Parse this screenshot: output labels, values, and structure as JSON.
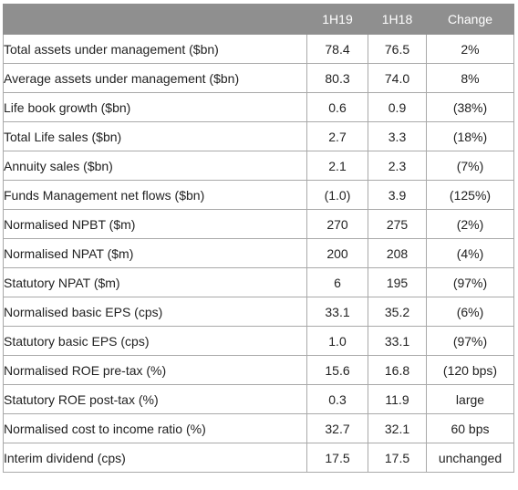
{
  "table": {
    "headers": [
      "",
      "1H19",
      "1H18",
      "Change"
    ],
    "rows": [
      {
        "label": "Total assets under management ($bn)",
        "h19": "78.4",
        "h18": "76.5",
        "change": "2%"
      },
      {
        "label": "Average assets under management ($bn)",
        "h19": "80.3",
        "h18": "74.0",
        "change": "8%"
      },
      {
        "label": "Life book growth ($bn)",
        "h19": "0.6",
        "h18": "0.9",
        "change": "(38%)"
      },
      {
        "label": "Total Life sales ($bn)",
        "h19": "2.7",
        "h18": "3.3",
        "change": "(18%)"
      },
      {
        "label": "Annuity sales ($bn)",
        "h19": "2.1",
        "h18": "2.3",
        "change": "(7%)"
      },
      {
        "label": "Funds Management net flows ($bn)",
        "h19": "(1.0)",
        "h18": "3.9",
        "change": "(125%)"
      },
      {
        "label": "Normalised NPBT ($m)",
        "h19": "270",
        "h18": "275",
        "change": "(2%)"
      },
      {
        "label": "Normalised NPAT ($m)",
        "h19": "200",
        "h18": "208",
        "change": "(4%)"
      },
      {
        "label": "Statutory NPAT ($m)",
        "h19": "6",
        "h18": "195",
        "change": "(97%)"
      },
      {
        "label": "Normalised basic EPS (cps)",
        "h19": "33.1",
        "h18": "35.2",
        "change": "(6%)"
      },
      {
        "label": "Statutory basic EPS (cps)",
        "h19": "1.0",
        "h18": "33.1",
        "change": "(97%)"
      },
      {
        "label": "Normalised ROE pre-tax (%)",
        "h19": "15.6",
        "h18": "16.8",
        "change": "(120 bps)"
      },
      {
        "label": "Statutory ROE post-tax (%)",
        "h19": "0.3",
        "h18": "11.9",
        "change": "large"
      },
      {
        "label": "Normalised cost to income ratio (%)",
        "h19": "32.7",
        "h18": "32.1",
        "change": "60 bps"
      },
      {
        "label": "Interim dividend (cps)",
        "h19": "17.5",
        "h18": "17.5",
        "change": "unchanged"
      }
    ]
  },
  "colors": {
    "header_bg": "#8f8f8f",
    "border": "#a9a9a9",
    "text": "#222222"
  }
}
